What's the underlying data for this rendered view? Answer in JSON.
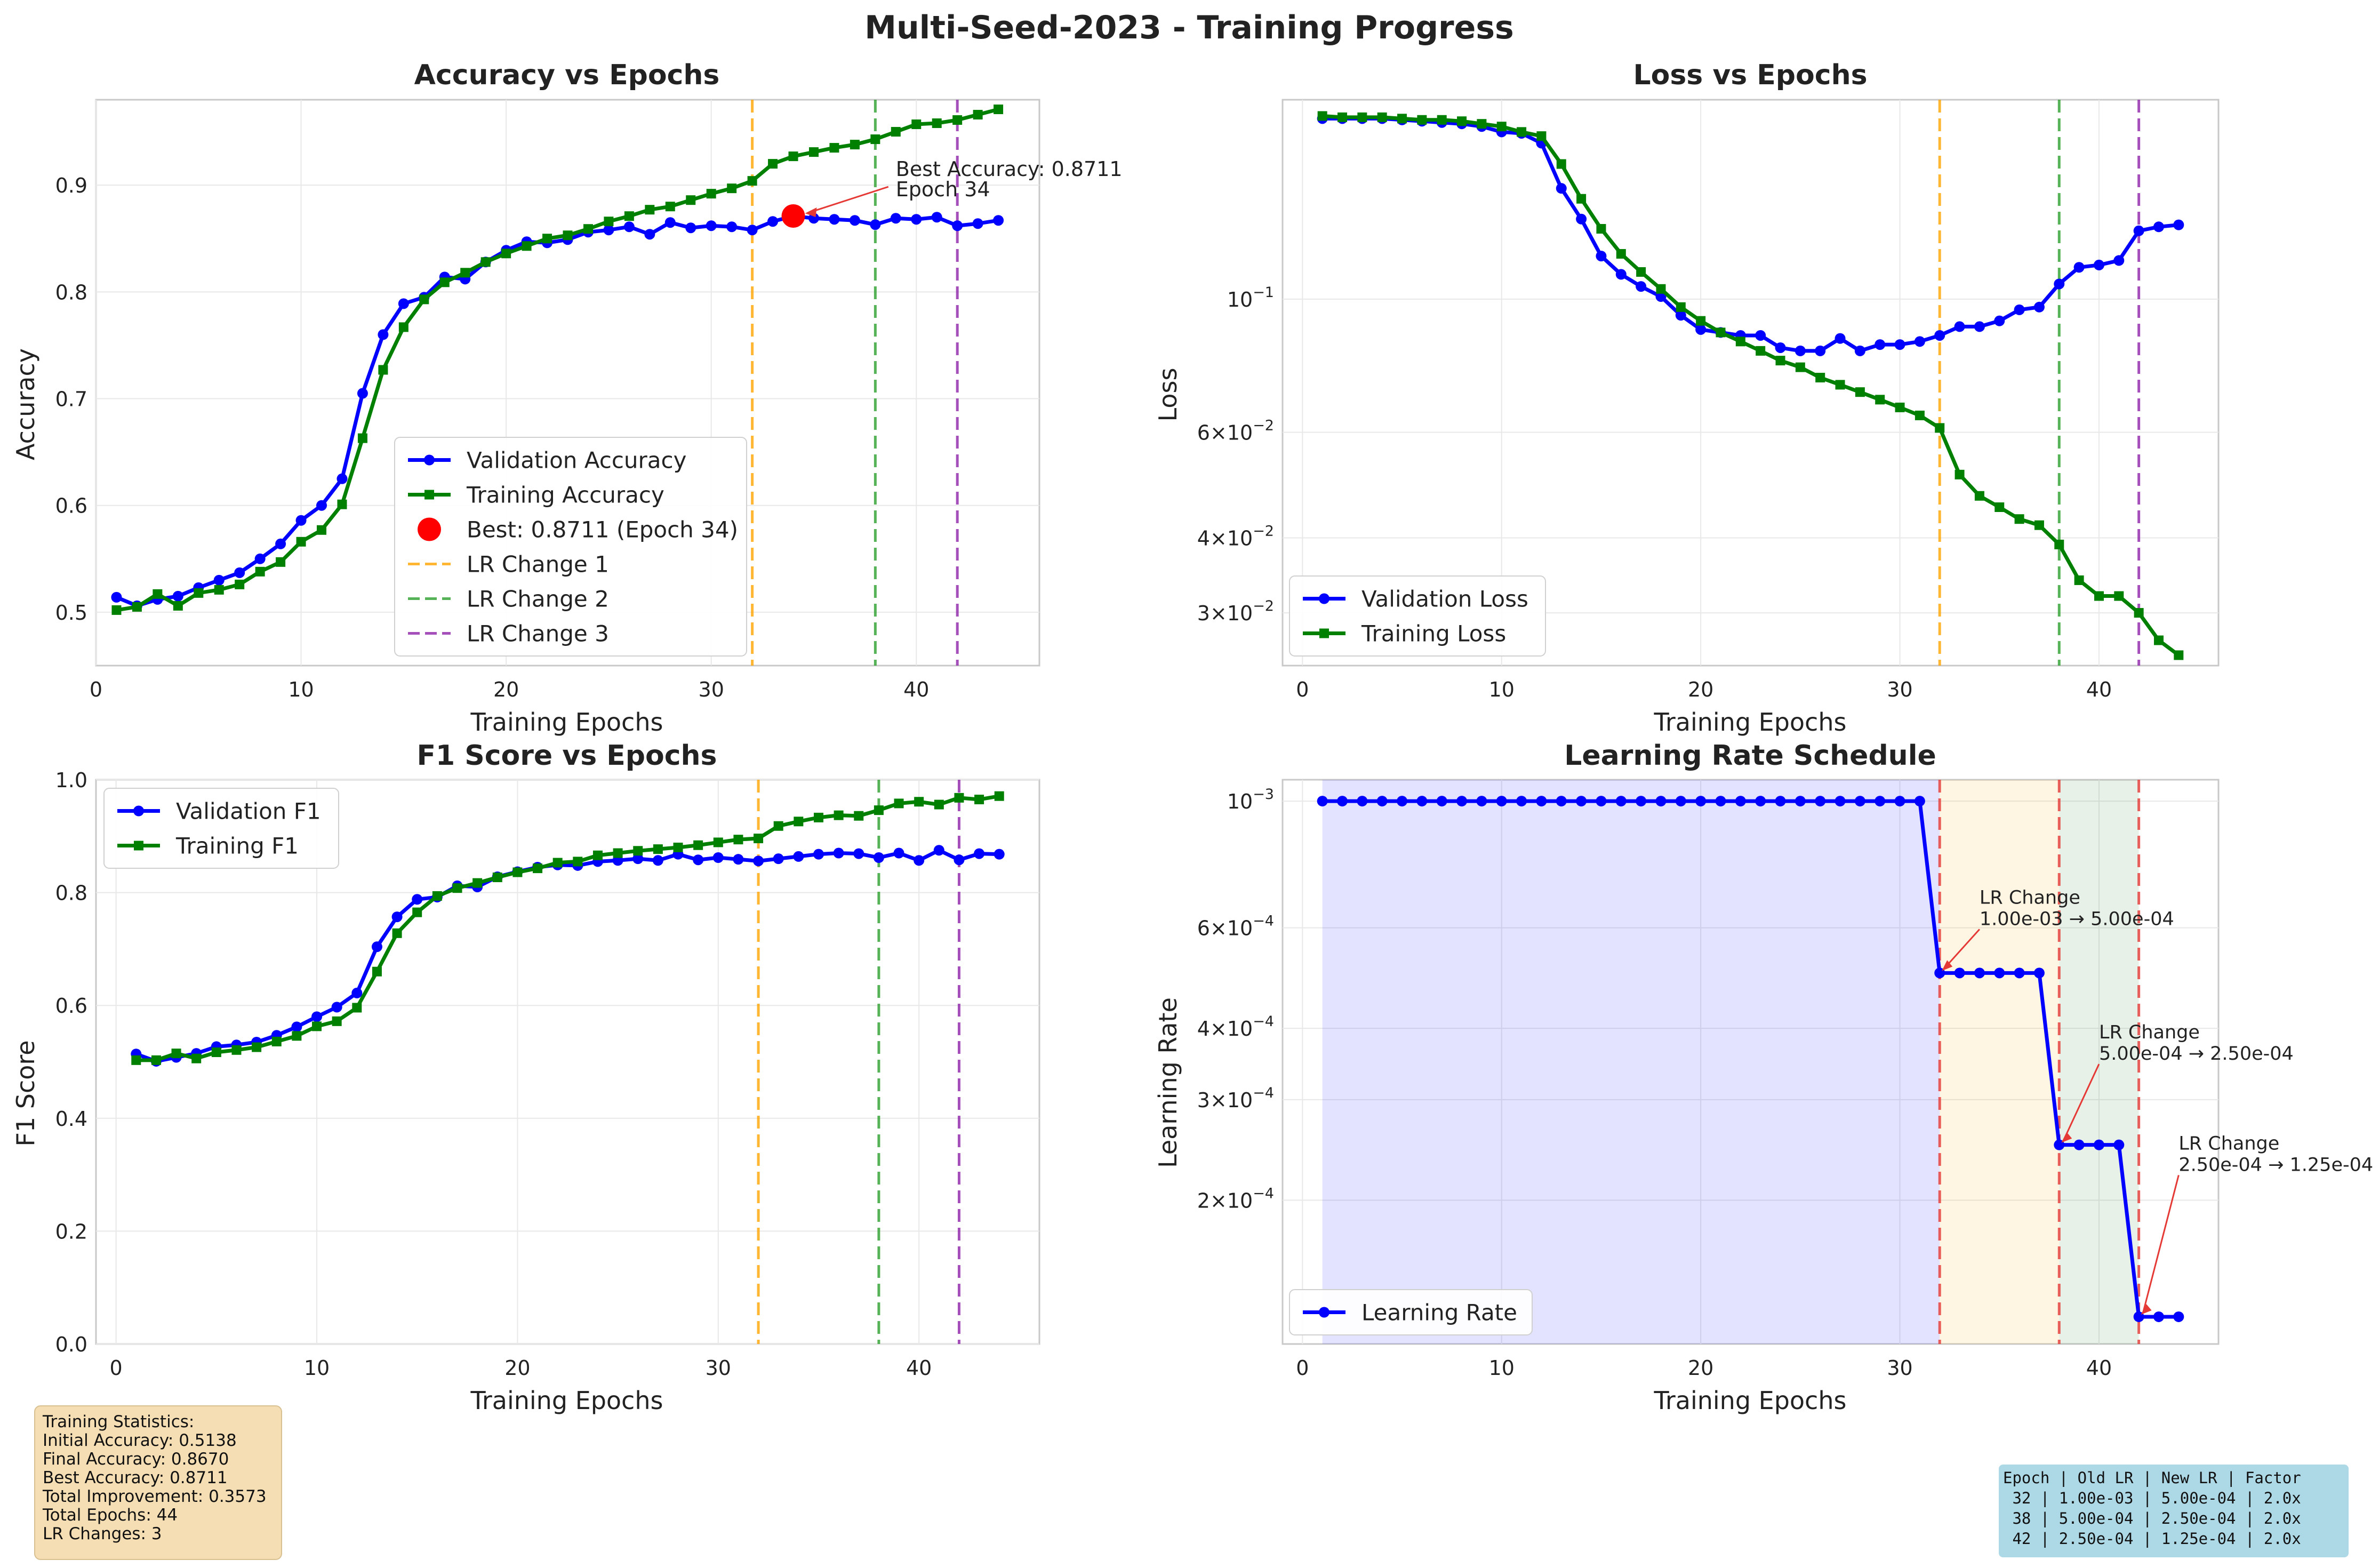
{
  "figure": {
    "title": "Multi-Seed-2023 - Training Progress"
  },
  "stats": {
    "lines": [
      "Training Statistics:",
      "Initial Accuracy: 0.5138",
      "Final Accuracy: 0.8670",
      "Best Accuracy: 0.8711",
      "Total Improvement: 0.3573",
      "Total Epochs: 44",
      "LR Changes: 3"
    ]
  },
  "lr_table": {
    "lines": [
      "Epoch | Old LR | New LR | Factor",
      " 32 | 1.00e-03 | 5.00e-04 | 2.0x",
      " 38 | 5.00e-04 | 2.50e-04 | 2.0x",
      " 42 | 2.50e-04 | 1.25e-04 | 2.0x"
    ]
  },
  "chart_data": [
    {
      "type": "line",
      "title": "Accuracy vs Epochs",
      "xlabel": "Training Epochs",
      "ylabel": "Accuracy",
      "xlim": [
        0,
        46
      ],
      "ylim": [
        0.45,
        0.98
      ],
      "xticks": [
        0,
        10,
        20,
        30,
        40
      ],
      "yticks": [
        0.5,
        0.6,
        0.7,
        0.8,
        0.9
      ],
      "ytick_labels": [
        "0.5",
        "0.6",
        "0.7",
        "0.8",
        "0.9"
      ],
      "grid": true,
      "legend_position": "lower center",
      "x": [
        1,
        2,
        3,
        4,
        5,
        6,
        7,
        8,
        9,
        10,
        11,
        12,
        13,
        14,
        15,
        16,
        17,
        18,
        19,
        20,
        21,
        22,
        23,
        24,
        25,
        26,
        27,
        28,
        29,
        30,
        31,
        32,
        33,
        34,
        35,
        36,
        37,
        38,
        39,
        40,
        41,
        42,
        43,
        44
      ],
      "series": [
        {
          "name": "Validation Accuracy",
          "color": "#0000ff",
          "marker": "circle",
          "values": [
            0.514,
            0.506,
            0.512,
            0.515,
            0.523,
            0.53,
            0.537,
            0.55,
            0.564,
            0.586,
            0.6,
            0.625,
            0.705,
            0.76,
            0.789,
            0.795,
            0.814,
            0.812,
            0.828,
            0.839,
            0.847,
            0.846,
            0.849,
            0.856,
            0.858,
            0.861,
            0.854,
            0.865,
            0.86,
            0.862,
            0.861,
            0.858,
            0.866,
            0.871,
            0.869,
            0.868,
            0.867,
            0.863,
            0.869,
            0.868,
            0.87,
            0.862,
            0.864,
            0.867
          ]
        },
        {
          "name": "Training Accuracy",
          "color": "#008000",
          "marker": "square",
          "values": [
            0.502,
            0.505,
            0.517,
            0.506,
            0.518,
            0.521,
            0.526,
            0.538,
            0.547,
            0.566,
            0.577,
            0.601,
            0.663,
            0.727,
            0.767,
            0.793,
            0.809,
            0.818,
            0.828,
            0.836,
            0.843,
            0.85,
            0.853,
            0.859,
            0.866,
            0.871,
            0.877,
            0.88,
            0.886,
            0.892,
            0.897,
            0.904,
            0.92,
            0.927,
            0.931,
            0.935,
            0.938,
            0.943,
            0.95,
            0.957,
            0.958,
            0.961,
            0.966,
            0.971
          ]
        }
      ],
      "best": {
        "label": "Best: 0.8711 (Epoch 34)",
        "epoch": 34,
        "value": 0.8711,
        "annotation": [
          "Best Accuracy: 0.8711",
          "Epoch 34"
        ]
      },
      "lr_lines": [
        {
          "name": "LR Change 1",
          "epoch": 32,
          "color": "#ffa500"
        },
        {
          "name": "LR Change 2",
          "epoch": 38,
          "color": "#2ca02c"
        },
        {
          "name": "LR Change 3",
          "epoch": 42,
          "color": "#8e24aa"
        }
      ]
    },
    {
      "type": "line",
      "title": "Loss vs Epochs",
      "xlabel": "Training Epochs",
      "ylabel": "Loss",
      "yscale": "log",
      "xlim": [
        -1,
        46
      ],
      "ylim": [
        0.0245,
        0.215
      ],
      "xticks": [
        0,
        10,
        20,
        30,
        40
      ],
      "yticks": [
        0.03,
        0.04,
        0.06,
        0.1
      ],
      "ytick_labels": [
        [
          "3",
          "10",
          "−2"
        ],
        [
          "4",
          "10",
          "−2"
        ],
        [
          "6",
          "10",
          "−2"
        ],
        [
          "",
          "10",
          "−1"
        ]
      ],
      "grid": true,
      "legend_position": "lower left",
      "x": [
        1,
        2,
        3,
        4,
        5,
        6,
        7,
        8,
        9,
        10,
        11,
        12,
        13,
        14,
        15,
        16,
        17,
        18,
        19,
        20,
        21,
        22,
        23,
        24,
        25,
        26,
        27,
        28,
        29,
        30,
        31,
        32,
        33,
        34,
        35,
        36,
        37,
        38,
        39,
        40,
        41,
        42,
        43,
        44
      ],
      "series": [
        {
          "name": "Validation Loss",
          "color": "#0000ff",
          "marker": "circle",
          "values": [
            0.2,
            0.2,
            0.2,
            0.2,
            0.199,
            0.198,
            0.197,
            0.196,
            0.194,
            0.19,
            0.189,
            0.182,
            0.153,
            0.136,
            0.118,
            0.11,
            0.105,
            0.101,
            0.094,
            0.089,
            0.088,
            0.087,
            0.087,
            0.083,
            0.082,
            0.082,
            0.086,
            0.082,
            0.084,
            0.084,
            0.085,
            0.087,
            0.09,
            0.09,
            0.092,
            0.096,
            0.097,
            0.106,
            0.113,
            0.114,
            0.116,
            0.13,
            0.132,
            0.133
          ]
        },
        {
          "name": "Training Loss",
          "color": "#008000",
          "marker": "square",
          "values": [
            0.202,
            0.201,
            0.201,
            0.201,
            0.2,
            0.199,
            0.199,
            0.198,
            0.196,
            0.194,
            0.19,
            0.187,
            0.168,
            0.147,
            0.131,
            0.119,
            0.111,
            0.104,
            0.097,
            0.092,
            0.088,
            0.085,
            0.082,
            0.079,
            0.077,
            0.074,
            0.072,
            0.07,
            0.068,
            0.066,
            0.064,
            0.061,
            0.051,
            0.047,
            0.045,
            0.043,
            0.042,
            0.039,
            0.034,
            0.032,
            0.032,
            0.03,
            0.027,
            0.0255
          ]
        }
      ],
      "lr_lines": [
        {
          "epoch": 32,
          "color": "#ffa500"
        },
        {
          "epoch": 38,
          "color": "#2ca02c"
        },
        {
          "epoch": 42,
          "color": "#8e24aa"
        }
      ]
    },
    {
      "type": "line",
      "title": "F1 Score vs Epochs",
      "xlabel": "Training Epochs",
      "ylabel": "F1 Score",
      "xlim": [
        -1,
        46
      ],
      "ylim": [
        0,
        1.0
      ],
      "xticks": [
        0,
        10,
        20,
        30,
        40
      ],
      "yticks": [
        0.0,
        0.2,
        0.4,
        0.6,
        0.8,
        1.0
      ],
      "ytick_labels": [
        "0.0",
        "0.2",
        "0.4",
        "0.6",
        "0.8",
        "1.0"
      ],
      "grid": true,
      "legend_position": "upper left",
      "x": [
        1,
        2,
        3,
        4,
        5,
        6,
        7,
        8,
        9,
        10,
        11,
        12,
        13,
        14,
        15,
        16,
        17,
        18,
        19,
        20,
        21,
        22,
        23,
        24,
        25,
        26,
        27,
        28,
        29,
        30,
        31,
        32,
        33,
        34,
        35,
        36,
        37,
        38,
        39,
        40,
        41,
        42,
        43,
        44
      ],
      "series": [
        {
          "name": "Validation F1",
          "color": "#0000ff",
          "marker": "circle",
          "values": [
            0.514,
            0.501,
            0.508,
            0.515,
            0.527,
            0.53,
            0.535,
            0.547,
            0.562,
            0.58,
            0.597,
            0.622,
            0.704,
            0.757,
            0.788,
            0.792,
            0.812,
            0.81,
            0.828,
            0.837,
            0.845,
            0.849,
            0.848,
            0.855,
            0.857,
            0.86,
            0.857,
            0.868,
            0.858,
            0.862,
            0.859,
            0.856,
            0.86,
            0.864,
            0.868,
            0.87,
            0.869,
            0.862,
            0.87,
            0.857,
            0.875,
            0.858,
            0.869,
            0.868
          ]
        },
        {
          "name": "Training F1",
          "color": "#008000",
          "marker": "square",
          "values": [
            0.503,
            0.503,
            0.515,
            0.506,
            0.517,
            0.521,
            0.526,
            0.536,
            0.546,
            0.563,
            0.572,
            0.596,
            0.66,
            0.728,
            0.765,
            0.794,
            0.808,
            0.817,
            0.827,
            0.836,
            0.843,
            0.853,
            0.855,
            0.866,
            0.87,
            0.874,
            0.877,
            0.88,
            0.884,
            0.889,
            0.894,
            0.896,
            0.918,
            0.926,
            0.933,
            0.937,
            0.936,
            0.946,
            0.958,
            0.961,
            0.956,
            0.968,
            0.965,
            0.971
          ]
        }
      ],
      "lr_lines": [
        {
          "epoch": 32,
          "color": "#ffa500"
        },
        {
          "epoch": 38,
          "color": "#2ca02c"
        },
        {
          "epoch": 42,
          "color": "#8e24aa"
        }
      ]
    },
    {
      "type": "line",
      "title": "Learning Rate Schedule",
      "xlabel": "Training Epochs",
      "ylabel": "Learning Rate",
      "yscale": "log",
      "xlim": [
        -1,
        46
      ],
      "ylim": [
        0.000112,
        0.00109
      ],
      "xticks": [
        0,
        10,
        20,
        30,
        40
      ],
      "yticks": [
        0.0002,
        0.0003,
        0.0004,
        0.0006,
        0.001
      ],
      "ytick_labels": [
        [
          "2",
          "10",
          "−4"
        ],
        [
          "3",
          "10",
          "−4"
        ],
        [
          "4",
          "10",
          "−4"
        ],
        [
          "6",
          "10",
          "−4"
        ],
        [
          "",
          "10",
          "−3"
        ]
      ],
      "grid": true,
      "legend_position": "lower left",
      "x": [
        1,
        2,
        3,
        4,
        5,
        6,
        7,
        8,
        9,
        10,
        11,
        12,
        13,
        14,
        15,
        16,
        17,
        18,
        19,
        20,
        21,
        22,
        23,
        24,
        25,
        26,
        27,
        28,
        29,
        30,
        31,
        32,
        33,
        34,
        35,
        36,
        37,
        38,
        39,
        40,
        41,
        42,
        43,
        44
      ],
      "series": [
        {
          "name": "Learning Rate",
          "color": "#0000ff",
          "marker": "circle",
          "values": [
            0.001,
            0.001,
            0.001,
            0.001,
            0.001,
            0.001,
            0.001,
            0.001,
            0.001,
            0.001,
            0.001,
            0.001,
            0.001,
            0.001,
            0.001,
            0.001,
            0.001,
            0.001,
            0.001,
            0.001,
            0.001,
            0.001,
            0.001,
            0.001,
            0.001,
            0.001,
            0.001,
            0.001,
            0.001,
            0.001,
            0.001,
            0.0005,
            0.0005,
            0.0005,
            0.0005,
            0.0005,
            0.0005,
            0.00025,
            0.00025,
            0.00025,
            0.00025,
            0.000125,
            0.000125,
            0.000125
          ]
        }
      ],
      "phases": [
        {
          "from": 1,
          "to": 32,
          "color": "#0000ff"
        },
        {
          "from": 32,
          "to": 38,
          "color": "#ffa500"
        },
        {
          "from": 38,
          "to": 42,
          "color": "#2e7d32"
        }
      ],
      "change_lines": [
        32,
        38,
        42
      ],
      "annotations": [
        {
          "epoch": 32,
          "value": 0.0005,
          "text_epoch": 34,
          "text_value": 0.00062,
          "lines": [
            "LR Change",
            "1.00e-03 → 5.00e-04"
          ]
        },
        {
          "epoch": 38,
          "value": 0.00025,
          "text_epoch": 40,
          "text_value": 0.00036,
          "lines": [
            "LR Change",
            "5.00e-04 → 2.50e-04"
          ]
        },
        {
          "epoch": 42,
          "value": 0.000125,
          "text_epoch": 44,
          "text_value": 0.00023,
          "lines": [
            "LR Change",
            "2.50e-04 → 1.25e-04"
          ]
        }
      ]
    }
  ]
}
